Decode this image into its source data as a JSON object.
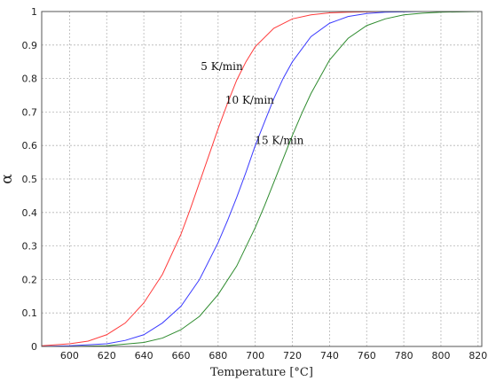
{
  "chart_data": {
    "type": "line",
    "title": "",
    "xlabel": "Temperature [°C]",
    "ylabel": "α",
    "xlim": [
      585,
      822
    ],
    "ylim": [
      0,
      1
    ],
    "grid": true,
    "legend": "none",
    "x_ticks": [
      600,
      620,
      640,
      660,
      680,
      700,
      720,
      740,
      760,
      780,
      800,
      820
    ],
    "y_ticks": [
      0,
      0.1,
      0.2,
      0.3,
      0.4,
      0.5,
      0.6,
      0.7,
      0.8,
      0.9,
      1
    ],
    "y_tick_labels": [
      "0",
      "0.1",
      "0.2",
      "0.3",
      "0.4",
      "0.5",
      "0.6",
      "0.7",
      "0.8",
      "0.9",
      "1"
    ],
    "series": [
      {
        "name": "5 K/min",
        "color": "#ff3b3b",
        "x": [
          585,
          600,
          610,
          620,
          630,
          640,
          650,
          660,
          665,
          670,
          675,
          680,
          685,
          690,
          695,
          700,
          710,
          720,
          730,
          740,
          750,
          760,
          770,
          780
        ],
        "y": [
          0.002,
          0.008,
          0.016,
          0.035,
          0.07,
          0.13,
          0.215,
          0.335,
          0.41,
          0.49,
          0.57,
          0.65,
          0.725,
          0.795,
          0.85,
          0.895,
          0.95,
          0.978,
          0.99,
          0.996,
          0.998,
          0.999,
          1.0,
          1.0
        ]
      },
      {
        "name": "10 K/min",
        "color": "#3b3bff",
        "x": [
          585,
          600,
          620,
          630,
          640,
          650,
          660,
          670,
          680,
          685,
          690,
          695,
          700,
          705,
          710,
          715,
          720,
          730,
          740,
          750,
          760,
          770,
          780,
          790
        ],
        "y": [
          0.0,
          0.002,
          0.008,
          0.018,
          0.035,
          0.07,
          0.12,
          0.2,
          0.31,
          0.375,
          0.445,
          0.52,
          0.6,
          0.67,
          0.74,
          0.8,
          0.85,
          0.925,
          0.965,
          0.985,
          0.994,
          0.998,
          0.999,
          1.0
        ]
      },
      {
        "name": "15 K/min",
        "color": "#2e8b2e",
        "x": [
          585,
          600,
          620,
          640,
          650,
          660,
          670,
          680,
          690,
          700,
          705,
          710,
          715,
          720,
          725,
          730,
          740,
          750,
          760,
          770,
          780,
          790,
          800,
          822
        ],
        "y": [
          0.0,
          0.0,
          0.002,
          0.012,
          0.025,
          0.05,
          0.09,
          0.155,
          0.24,
          0.355,
          0.42,
          0.49,
          0.56,
          0.63,
          0.695,
          0.755,
          0.855,
          0.92,
          0.958,
          0.978,
          0.99,
          0.995,
          0.998,
          1.0
        ]
      }
    ],
    "annotations": [
      {
        "text": "5 K/min",
        "x": 682,
        "y": 0.825
      },
      {
        "text": "10 K/min",
        "x": 697,
        "y": 0.725
      },
      {
        "text": "15 K/min",
        "x": 713,
        "y": 0.605
      }
    ]
  }
}
